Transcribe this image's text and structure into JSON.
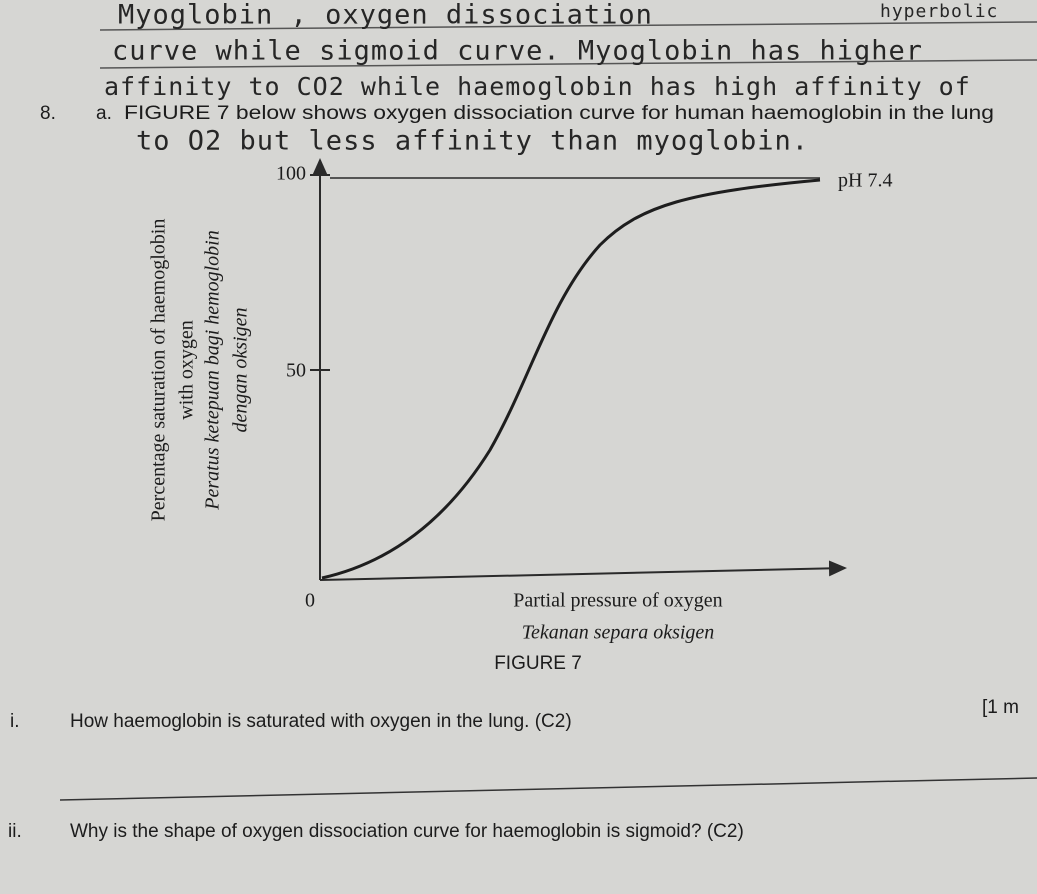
{
  "handwriting": [
    "Myoglobin , oxygen dissociation",
    "hyperbolic",
    "curve while sigmoid curve. Myoglobin has higher",
    "affinity to CO2 while haemoglobin has high affinity of",
    "to O2 but less affinity than myoglobin."
  ],
  "question": {
    "number": "8.",
    "part": "a.",
    "text": "FIGURE 7 below shows oxygen dissociation curve for human haemoglobin in the lung"
  },
  "figure": {
    "y_label_en": "Percentage saturation of haemoglobin",
    "y_label_en_2": "with oxygen",
    "y_label_ms": "Peratus ketepuan bagi hemoglobin",
    "y_label_ms_2": "dengan oksigen",
    "y_ticks": [
      "100",
      "50"
    ],
    "origin": "0",
    "curve_label": "pH 7.4",
    "x_label_en": "Partial pressure of oxygen",
    "x_label_ms": "Tekanan separa oksigen",
    "caption": "FIGURE 7"
  },
  "sub_questions": [
    {
      "number": "i.",
      "text": "How haemoglobin is saturated with oxygen in the lung. (C2)",
      "marks": "[1 m"
    },
    {
      "number": "ii.",
      "text": "Why is the shape of oxygen dissociation curve for haemoglobin is sigmoid? (C2)"
    }
  ]
}
